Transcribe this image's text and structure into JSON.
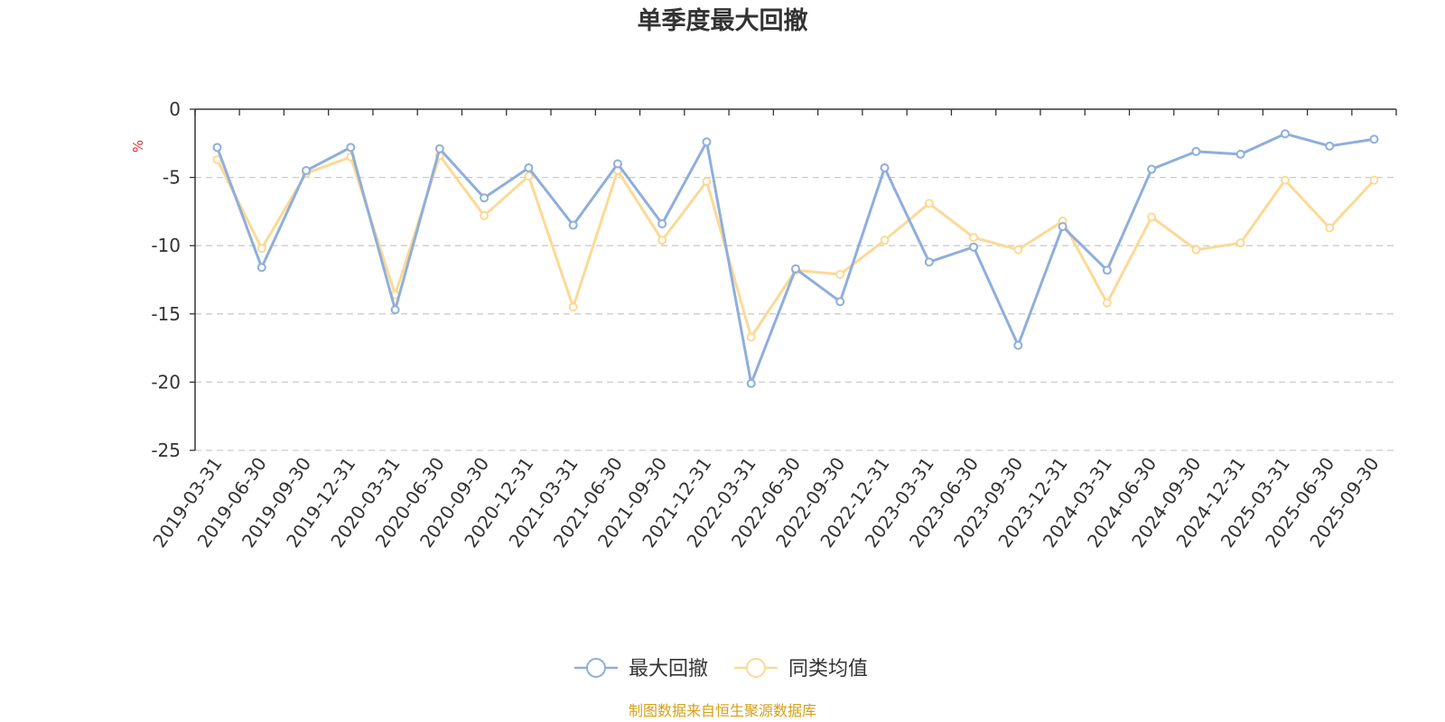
{
  "chart_data": {
    "type": "line",
    "title": "单季度最大回撤",
    "ylabel": "%",
    "xlabel": "",
    "ylim": [
      -25,
      0
    ],
    "yticks": [
      0,
      -5,
      -10,
      -15,
      -20,
      -25
    ],
    "ytick_labels": [
      "0",
      "-5",
      "-10",
      "-15",
      "-20",
      "-25"
    ],
    "grid": true,
    "legend_position": "bottom-center",
    "categories": [
      "2019-03-31",
      "2019-06-30",
      "2019-09-30",
      "2019-12-31",
      "2020-03-31",
      "2020-06-30",
      "2020-09-30",
      "2020-12-31",
      "2021-03-31",
      "2021-06-30",
      "2021-09-30",
      "2021-12-31",
      "2022-03-31",
      "2022-06-30",
      "2022-09-30",
      "2022-12-31",
      "2023-03-31",
      "2023-06-30",
      "2023-09-30",
      "2023-12-31",
      "2024-03-31",
      "2024-06-30",
      "2024-09-30",
      "2024-12-31",
      "2025-03-31",
      "2025-06-30",
      "2025-09-30"
    ],
    "series": [
      {
        "name": "最大回撤",
        "color": "#8faedb",
        "values": [
          -2.8,
          -11.6,
          -4.5,
          -2.8,
          -14.7,
          -2.9,
          -6.5,
          -4.3,
          -8.5,
          -4.0,
          -8.4,
          -2.4,
          -20.1,
          -11.7,
          -14.1,
          -4.3,
          -11.2,
          -10.1,
          -17.3,
          -8.6,
          -11.8,
          -4.4,
          -3.1,
          -3.3,
          -1.8,
          -2.7,
          -2.2
        ]
      },
      {
        "name": "同类均值",
        "color": "#fcd996",
        "values": [
          -3.7,
          -10.2,
          -4.7,
          -3.5,
          -13.6,
          -3.4,
          -7.8,
          -4.9,
          -14.5,
          -4.5,
          -9.6,
          -5.3,
          -16.7,
          -11.8,
          -12.1,
          -9.6,
          -6.9,
          -9.4,
          -10.3,
          -8.2,
          -14.2,
          -7.9,
          -10.3,
          -9.8,
          -5.2,
          -8.7,
          -5.2
        ]
      }
    ],
    "source_text": "制图数据来自恒生聚源数据库",
    "source_color": "#d4a017",
    "unit_color": "#e03030"
  }
}
